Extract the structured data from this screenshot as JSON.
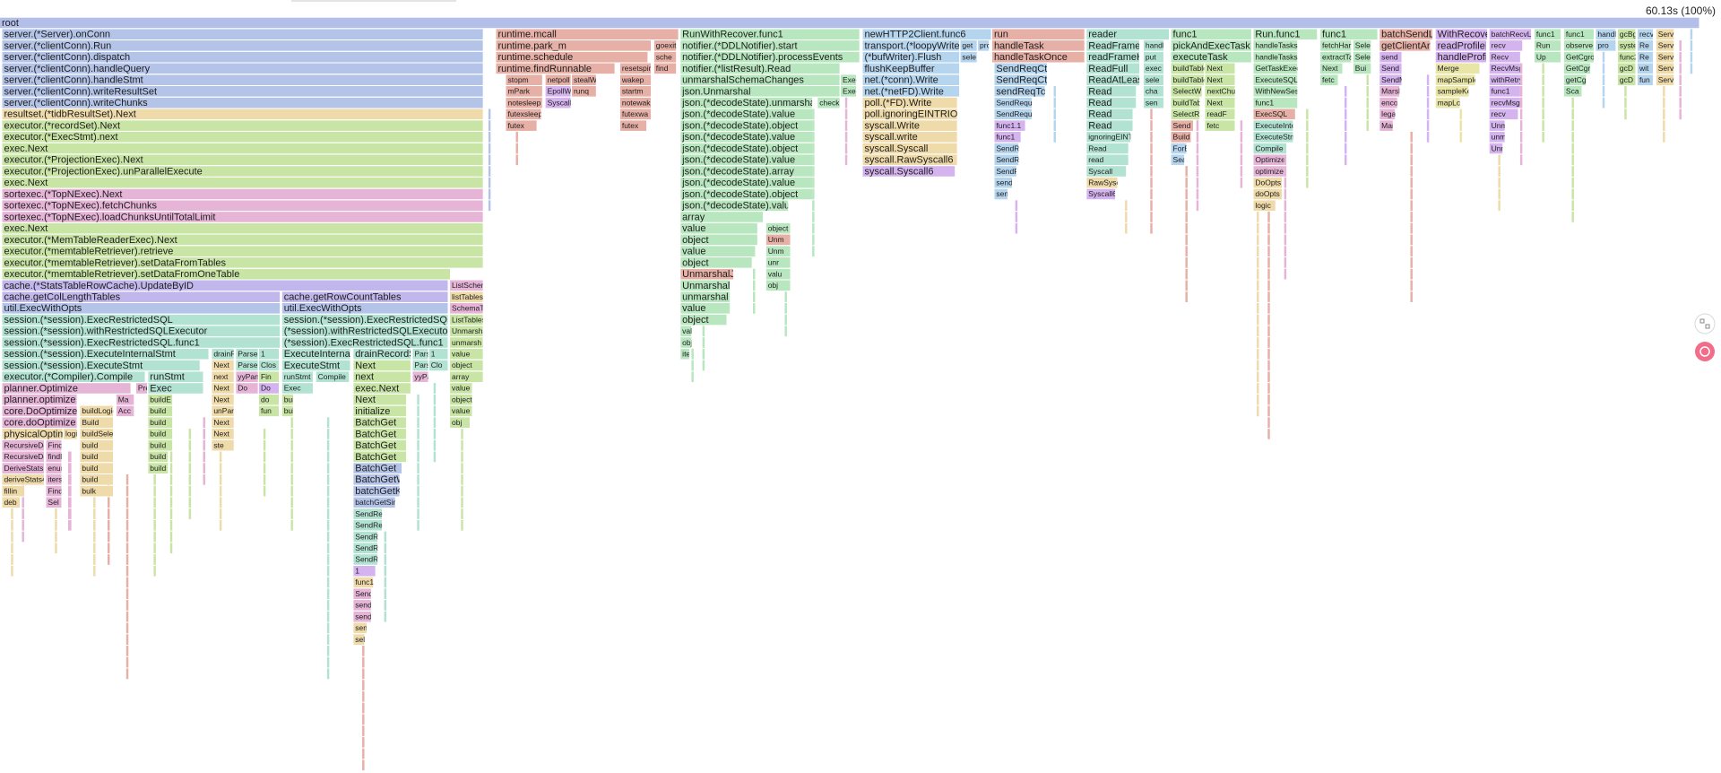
{
  "header": {
    "total": "60.13s (100%)"
  },
  "stacks": [
    [
      "root"
    ],
    [
      "server.(*Server).onConn",
      "server.(*clientConn).Run",
      "server.(*clientConn).dispatch",
      "server.(*clientConn).handleQuery",
      "server.(*clientConn).handleStmt",
      "server.(*clientConn).writeResultSet",
      "server.(*clientConn).writeChunks"
    ],
    [
      "resultset.(*tidbResultSet).Next",
      "executor.(*recordSet).Next",
      "executor.(*ExecStmt).next",
      "exec.Next",
      "executor.(*ProjectionExec).Next",
      "executor.(*ProjectionExec).unParallelExecute",
      "exec.Next",
      "sortexec.(*TopNExec).Next",
      "sortexec.(*TopNExec).fetchChunks",
      "sortexec.(*TopNExec).loadChunksUntilTotalLimit",
      "exec.Next",
      "executor.(*MemTableReaderExec).Next",
      "executor.(*memtableRetriever).retrieve",
      "executor.(*memtableRetriever).setDataFromTables",
      "executor.(*memtableRetriever).setDataFromOneTable"
    ],
    [
      "cache.(*StatsTableRowCache).UpdateByID"
    ],
    [
      "cache.getColLengthTables",
      "util.ExecWithOpts",
      "session.(*session).ExecRestrictedSQL",
      "session.(*session).withRestrictedSQLExecutor",
      "session.(*session).ExecRestrictedSQL.func1",
      "session.(*session).ExecuteInternalStmt",
      "session.(*session).ExecuteStmt",
      "executor.(*Compiler).Compile",
      "planner.Optimize",
      "planner.optimize",
      "core.DoOptimize",
      "core.doOptimize",
      "physicalOptimize",
      "RecursiveDe",
      "RecursiveDe",
      "DeriveStats",
      "deriveStats4",
      "fillin",
      "deb"
    ],
    [
      "buildLogica",
      "Build",
      "buildSelect",
      "build",
      "build",
      "build",
      "build",
      "bulk"
    ],
    [
      "runStmt",
      "Exec",
      "buildE",
      "build",
      "build",
      "build",
      "build",
      "build",
      "build"
    ],
    [
      "drainRe",
      "Next",
      "next",
      "Next",
      "Next",
      "unPar",
      "Next",
      "Next",
      "ste"
    ],
    [
      "ParseS",
      "ParseS",
      "yyPan",
      "Do"
    ],
    [
      "1",
      "Clos",
      "Fin",
      "Do",
      "do",
      "fun"
    ],
    [
      "Ma",
      "Acc"
    ],
    [
      "Pre"
    ],
    [
      "logic"
    ],
    [
      "FindB",
      "findB",
      "enur",
      "iters",
      "Find",
      "Sel"
    ],
    [
      "cache.getRowCountTables",
      "util.ExecWithOpts",
      "session.(*session).ExecRestrictedSQL",
      "(*session).withRestrictedSQLExecutor",
      "(*session).ExecRestrictedSQL.func1",
      "ExecuteInternalStmt",
      "ExecuteStmt",
      "runStmt",
      "Exec",
      "builc",
      "builc"
    ],
    [
      "Compile"
    ],
    [
      "drainRecordSet",
      "Next",
      "next",
      "exec.Next",
      "Next",
      "initialize",
      "BatchGet",
      "BatchGet",
      "BatchGet",
      "BatchGet",
      "BatchGet",
      "BatchGetWithTier",
      "batchGetKeysBy",
      "batchGetSing",
      "SendReqC",
      "SendReqC",
      "SendRec",
      "SendRe",
      "SendRe",
      "1",
      "func1",
      "SendR",
      "sendR",
      "sendR",
      "sen",
      "sel"
    ],
    [
      "Parse",
      "Parse",
      "yyPa"
    ],
    [
      "1",
      "Clo"
    ],
    [
      "ListSchema",
      "listTablesF",
      "SchemaTa",
      "ListTables",
      "Unmarsha",
      "unmarsh",
      "value",
      "object",
      "array",
      "value",
      "object",
      "value",
      "obj"
    ],
    [
      "runtime.mcall",
      "runtime.park_m",
      "runtime.schedule",
      "runtime.findRunnable"
    ],
    [
      "stopm",
      "mPark",
      "notesleep",
      "futexsleep",
      "futex"
    ],
    [
      "netpoll",
      "EpollWa",
      "SyscallI"
    ],
    [
      "stealWo",
      "runq"
    ],
    [
      "resetspin",
      "wakep",
      "startm",
      "notewak",
      "futexwa",
      "futex"
    ],
    [
      "goexit",
      "sche",
      "find"
    ],
    [
      "RunWithRecover.func1",
      "notifier.(*DDLNotifier).start",
      "notifier.(*DDLNotifier).processEvents",
      "notifier.(*listResult).Read",
      "unmarshalSchemaChanges",
      "json.Unmarshal",
      "json.(*decodeState).unmarshal",
      "json.(*decodeState).value",
      "json.(*decodeState).object",
      "json.(*decodeState).value",
      "json.(*decodeState).object",
      "json.(*decodeState).value",
      "json.(*decodeState).array",
      "json.(*decodeState).value",
      "json.(*decodeState).object",
      "json.(*decodeState).value",
      "array",
      "value",
      "object",
      "value",
      "object",
      "UnmarshalJSON",
      "Unmarshal",
      "unmarshal",
      "value",
      "object",
      "valu",
      "obje",
      "iter"
    ],
    [
      "Exec",
      "Exec"
    ],
    [
      "checkVa"
    ],
    [
      "object",
      "Unm",
      "Unm",
      "unr",
      "valu",
      "obj"
    ],
    [
      "newHTTP2Client.func6",
      "transport.(*loopyWriter).run",
      "(*bufWriter).Flush",
      "flushKeepBuffer",
      "net.(*conn).Write",
      "net.(*netFD).Write",
      "poll.(*FD).Write",
      "poll.ignoringEINTRIO",
      "syscall.Write",
      "syscall.write",
      "syscall.Syscall",
      "syscall.RawSyscall6",
      "syscall.Syscall6"
    ],
    [
      "get",
      "sele"
    ],
    [
      "pro"
    ],
    [
      "run",
      "handleTask",
      "handleTaskOnce"
    ],
    [
      "SendReqCtx",
      "SendReqCtx",
      "sendReqToReg",
      "SendReques",
      "SendReques",
      "func1.1",
      "func1",
      "SendReq",
      "SendReq",
      "SendReq",
      "send",
      "sen"
    ],
    [
      "reader",
      "ReadFrame",
      "readFrameHea",
      "ReadFull",
      "ReadAtLeast",
      "Read",
      "Read",
      "Read",
      "Read",
      "ignoringEINT",
      "Read",
      "read",
      "Syscall",
      "RawSysc",
      "Syscall6"
    ],
    [
      "handl",
      "put",
      "exec",
      "sele",
      "cha",
      "sen"
    ],
    [
      "func1",
      "pickAndExecTask",
      "executeTask",
      "buildTableRe",
      "buildTableRe",
      "SelectW",
      "buildTable",
      "SelectR",
      "Send",
      "Build",
      "ForE",
      "Sea"
    ],
    [
      "Next",
      "Next",
      "nextChu",
      "Next",
      "readF",
      "fetc"
    ],
    [
      "Run.func1",
      "handleTasksLo",
      "handleTasks",
      "GetTaskExecut",
      "ExecuteSQLWi",
      "WithNewSessio",
      "func1",
      "ExecSQL",
      "ExecuteIntern",
      "ExecuteStmt",
      "Compile",
      "Optimize",
      "optimize",
      "DoOpts",
      "doOpts",
      "logic"
    ],
    [
      "func1",
      "fetchHandl",
      "extractTa",
      "Next",
      "fetc"
    ],
    [
      "Sele",
      "Sele",
      "Bui"
    ],
    [
      "batchSendLoop",
      "getClientAndSen",
      "send",
      "Send",
      "SendMsg",
      "Marshal",
      "encod",
      "lega",
      "Mar"
    ],
    [
      "WithRecovery",
      "readProfileData",
      "handleProfileData",
      "Merge",
      "mapSample",
      "sampleKey",
      "mapLoc"
    ],
    [
      "batchRecvLoop",
      "recv",
      "Recv",
      "RecvMsg",
      "withRetry",
      "func1",
      "recvMsg",
      "recv",
      "Unm",
      "unm",
      "Unm"
    ],
    [
      "func1",
      "Run",
      "Up"
    ],
    [
      "func1",
      "observe",
      "GetCgroup",
      "GetCgrou",
      "getCg",
      "Sca"
    ],
    [
      "handleL",
      "pro"
    ],
    [
      "gcBgM",
      "syste",
      "func2",
      "gcD",
      "gcD"
    ],
    [
      "recvLo",
      "Re",
      "Re",
      "wit",
      "fun"
    ],
    [
      "Serv",
      "Serv",
      "Serv",
      "Serv",
      "Serv"
    ]
  ]
}
